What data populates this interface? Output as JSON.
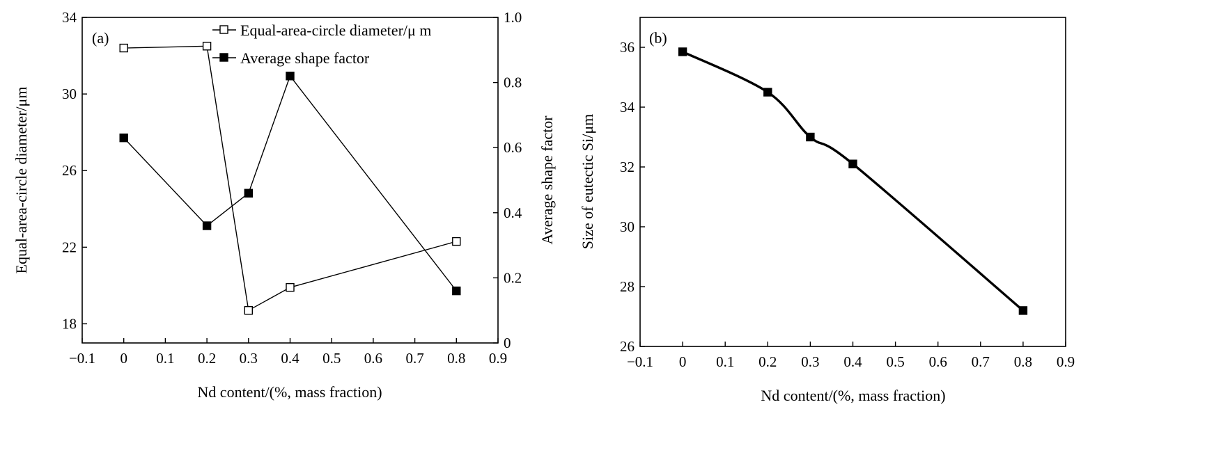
{
  "chart_data": [
    {
      "type": "line",
      "panel_label": "(a)",
      "xlabel": "Nd content/(%, mass fraction)",
      "xlim": [
        -0.1,
        0.9
      ],
      "x_ticks": [
        -0.1,
        0,
        0.1,
        0.2,
        0.3,
        0.4,
        0.5,
        0.6,
        0.7,
        0.8,
        0.9
      ],
      "x_tick_labels": [
        "−0.1",
        "0",
        "0.1",
        "0.2",
        "0.3",
        "0.4",
        "0.5",
        "0.6",
        "0.7",
        "0.8",
        "0.9"
      ],
      "ylabel_left": "Equal-area-circle diameter/μm",
      "ylim_left": [
        17,
        34
      ],
      "y_ticks_left": [
        18,
        22,
        26,
        30,
        34
      ],
      "y_tick_labels_left": [
        "18",
        "22",
        "26",
        "30",
        "34"
      ],
      "ylabel_right": "Average shape factor",
      "ylim_right": [
        0,
        1.0
      ],
      "y_ticks_right": [
        0,
        0.2,
        0.4,
        0.6,
        0.8,
        1.0
      ],
      "y_tick_labels_right": [
        "0",
        "0.2",
        "0.4",
        "0.6",
        "0.8",
        "1.0"
      ],
      "legend_position": "top-center",
      "grid": false,
      "series": [
        {
          "name": "Equal-area-circle diameter/μ m",
          "axis": "left",
          "marker": "open-square",
          "x": [
            0,
            0.2,
            0.3,
            0.4,
            0.8
          ],
          "y": [
            32.4,
            32.5,
            18.7,
            19.9,
            22.3
          ]
        },
        {
          "name": "Average shape factor",
          "axis": "right",
          "marker": "filled-square",
          "x": [
            0,
            0.2,
            0.3,
            0.4,
            0.8
          ],
          "y": [
            0.63,
            0.36,
            0.46,
            0.82,
            0.16
          ]
        }
      ]
    },
    {
      "type": "line",
      "panel_label": "(b)",
      "xlabel": "Nd content/(%, mass fraction)",
      "xlim": [
        -0.1,
        0.9
      ],
      "x_ticks": [
        -0.1,
        0,
        0.1,
        0.2,
        0.3,
        0.4,
        0.5,
        0.6,
        0.7,
        0.8,
        0.9
      ],
      "x_tick_labels": [
        "−0.1",
        "0",
        "0.1",
        "0.2",
        "0.3",
        "0.4",
        "0.5",
        "0.6",
        "0.7",
        "0.8",
        "0.9"
      ],
      "ylabel": "Size of eutectic Si/μm",
      "ylim": [
        26,
        37
      ],
      "y_ticks": [
        26,
        28,
        30,
        32,
        34,
        36
      ],
      "y_tick_labels": [
        "26",
        "28",
        "30",
        "32",
        "34",
        "36"
      ],
      "grid": false,
      "series": [
        {
          "marker": "filled-square",
          "x": [
            0,
            0.2,
            0.3,
            0.4,
            0.8
          ],
          "y": [
            35.85,
            34.5,
            33.0,
            32.1,
            27.2
          ]
        }
      ]
    }
  ]
}
